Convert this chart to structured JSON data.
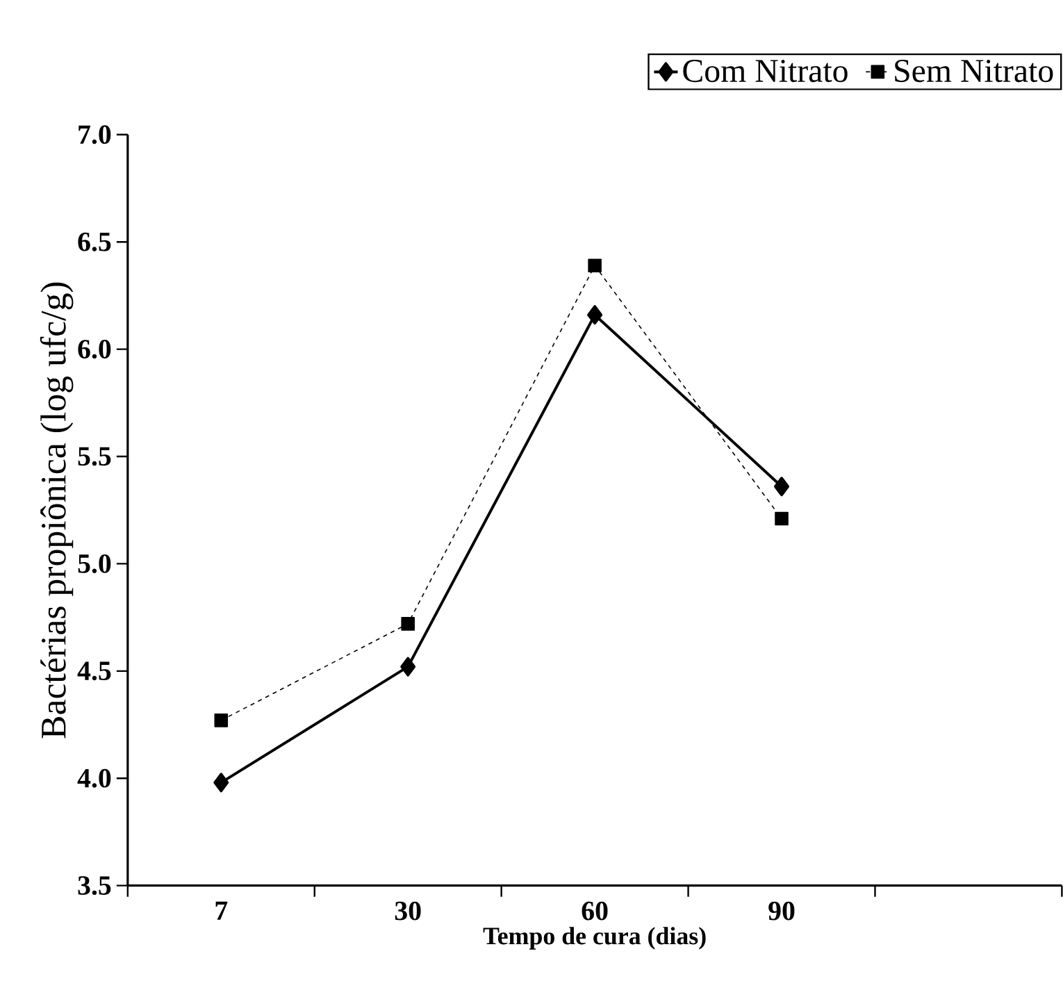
{
  "chart_data": {
    "type": "line",
    "xlabel": "Tempo de cura (dias)",
    "ylabel": "Bactérias propiônica (log ufc/g)",
    "categories": [
      "7",
      "30",
      "60",
      "90",
      null
    ],
    "series": [
      {
        "name": "Com Nitrato",
        "color": "#000000",
        "marker": "diamond",
        "line_style": "solid",
        "values": [
          3.98,
          4.52,
          6.16,
          5.36,
          null
        ]
      },
      {
        "name": "Sem Nitrato",
        "color": "#000000",
        "marker": "square",
        "line_style": "dashed",
        "values": [
          4.27,
          4.72,
          6.39,
          5.21,
          null
        ]
      }
    ],
    "ylim": [
      3.5,
      7.0
    ],
    "yticks": [
      {
        "value": 3.5,
        "label": "3.5"
      },
      {
        "value": 4,
        "label": "4.0"
      },
      {
        "value": 4.5,
        "label": "4.5"
      },
      {
        "value": 5,
        "label": "5.0"
      },
      {
        "value": 5.5,
        "label": "5.5"
      },
      {
        "value": 6,
        "label": "6.0"
      },
      {
        "value": 6.5,
        "label": "6.5"
      },
      {
        "value": 7,
        "label": "7.0"
      }
    ],
    "grid": false,
    "legend": "top right"
  }
}
